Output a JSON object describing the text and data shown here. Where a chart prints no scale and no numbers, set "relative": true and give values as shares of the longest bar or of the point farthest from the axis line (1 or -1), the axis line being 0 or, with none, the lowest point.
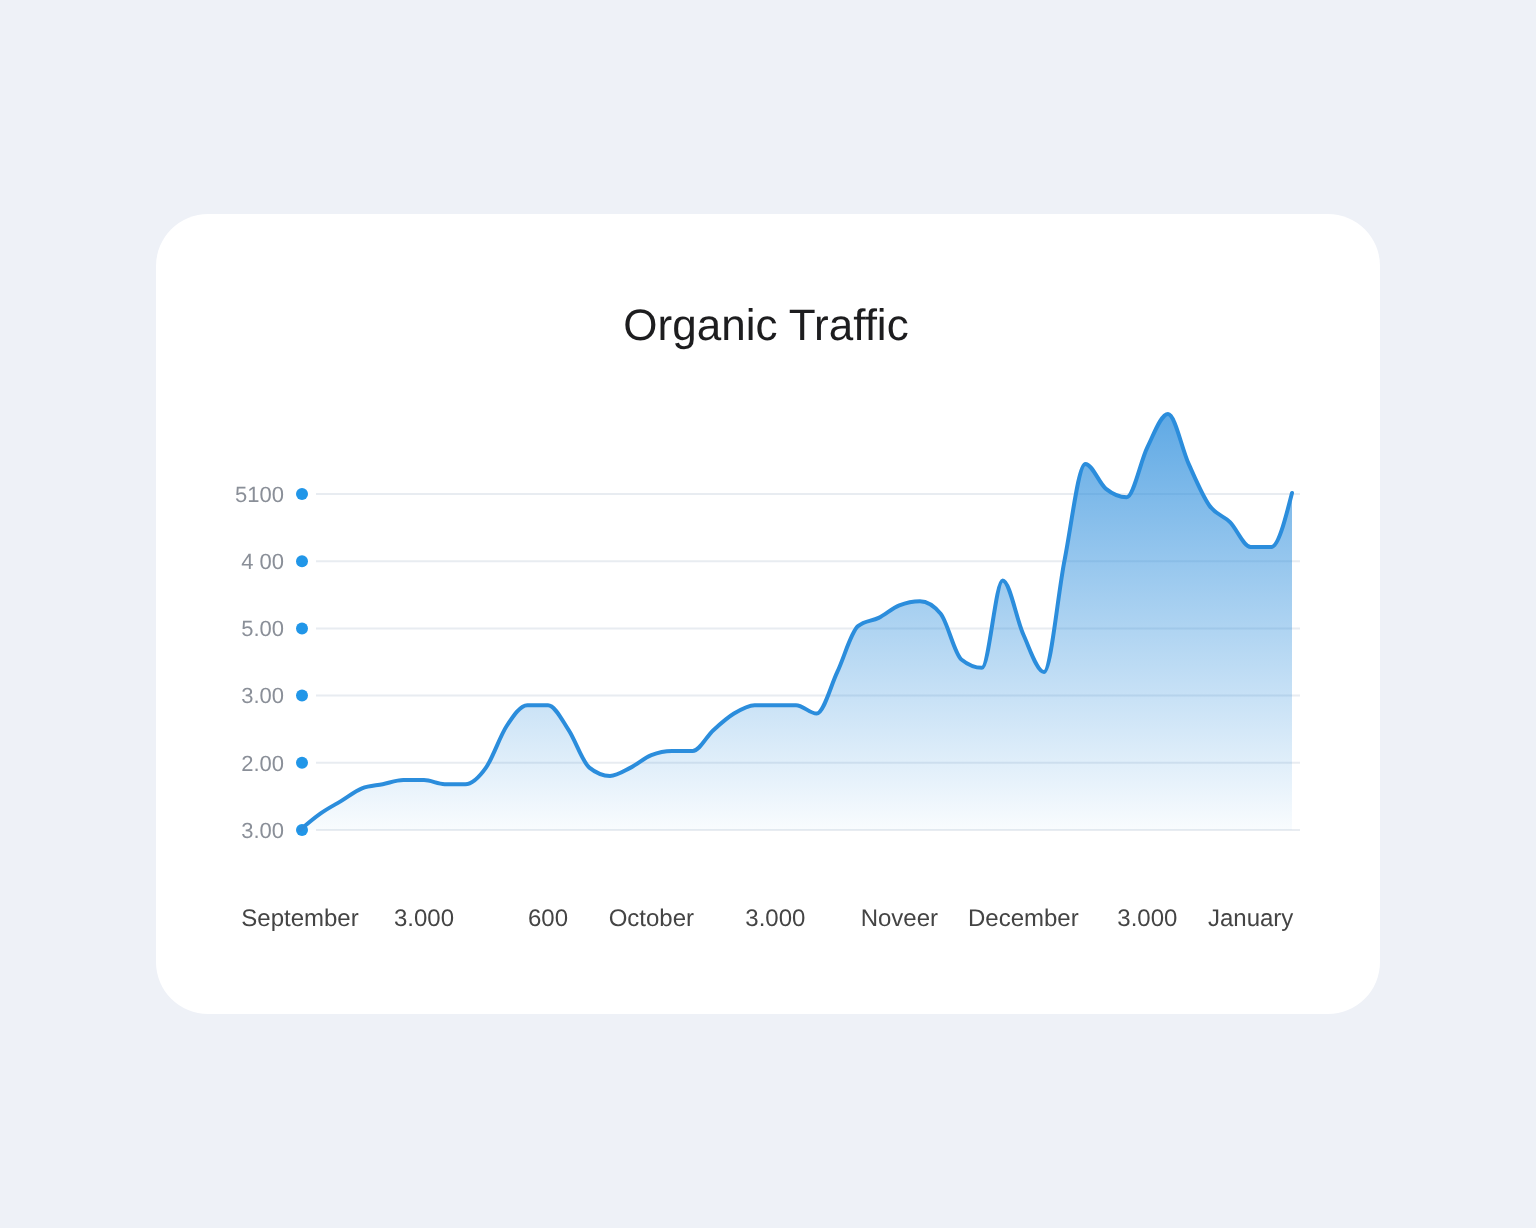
{
  "chart_data": {
    "type": "area",
    "title": "Organic Traffic",
    "relative": true,
    "categories": [
      "September",
      null,
      null,
      null,
      null,
      null,
      "3.000",
      null,
      null,
      null,
      null,
      null,
      "600",
      null,
      null,
      null,
      null,
      "October",
      null,
      null,
      null,
      null,
      null,
      "3.000",
      null,
      null,
      null,
      null,
      null,
      "Noveer",
      null,
      null,
      null,
      null,
      null,
      "December",
      null,
      null,
      null,
      null,
      null,
      "3.000",
      null,
      null,
      null,
      null,
      "January",
      null,
      null
    ],
    "series": [
      {
        "color": "#2b8ddc",
        "values": [
          0,
          0.04,
          0.07,
          0.1,
          0.11,
          0.12,
          0.12,
          0.11,
          0.11,
          0.15,
          0.25,
          0.3,
          0.3,
          0.24,
          0.15,
          0.13,
          0.15,
          0.18,
          0.19,
          0.19,
          0.24,
          0.28,
          0.3,
          0.3,
          0.3,
          0.28,
          0.38,
          0.49,
          0.51,
          0.54,
          0.55,
          0.52,
          0.41,
          0.39,
          0.6,
          0.47,
          0.38,
          0.65,
          0.88,
          0.82,
          0.8,
          0.92,
          1,
          0.88,
          0.78,
          0.74,
          0.68,
          0.68,
          0.81
        ]
      }
    ],
    "annotations": [
      "5100",
      "4 00",
      "5.00",
      "3.00",
      "2.00",
      "3.00"
    ],
    "grid": "y"
  }
}
